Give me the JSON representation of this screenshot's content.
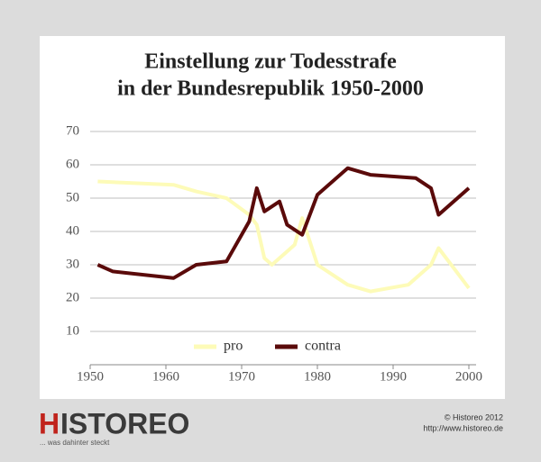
{
  "chart_data": {
    "type": "line",
    "title": [
      "Einstellung zur Todesstrafe",
      "in der Bundesrepublik 1950-2000"
    ],
    "xlim": [
      1950,
      2000
    ],
    "xticks": [
      1950,
      1960,
      1970,
      1980,
      1990,
      2000
    ],
    "ylim": [
      0,
      70
    ],
    "yticks": [
      10,
      20,
      30,
      40,
      50,
      60,
      70
    ],
    "grid": true,
    "legend": "bottom",
    "series": [
      {
        "name": "pro",
        "color": "#fdfbb8",
        "x": [
          1951,
          1961,
          1964,
          1968,
          1971,
          1972,
          1973,
          1974,
          1976,
          1977,
          1978,
          1980,
          1984,
          1987,
          1992,
          1995,
          1996,
          2000
        ],
        "values": [
          55,
          54,
          52,
          50,
          45,
          42,
          32,
          30,
          34,
          36,
          44,
          30,
          24,
          22,
          24,
          30,
          35,
          23
        ]
      },
      {
        "name": "contra",
        "color": "#5a0a0a",
        "x": [
          1951,
          1953,
          1961,
          1964,
          1968,
          1971,
          1972,
          1973,
          1975,
          1976,
          1978,
          1980,
          1984,
          1987,
          1993,
          1995,
          1996,
          2000
        ],
        "values": [
          30,
          28,
          26,
          30,
          31,
          43,
          53,
          46,
          49,
          42,
          39,
          51,
          59,
          57,
          56,
          53,
          45,
          53
        ]
      }
    ]
  },
  "footer": {
    "logo_first": "H",
    "logo_rest": "ISTOREO",
    "slogan": "... was dahinter steckt",
    "copyright": "© Historeo 2012",
    "url": "http://www.historeo.de"
  }
}
